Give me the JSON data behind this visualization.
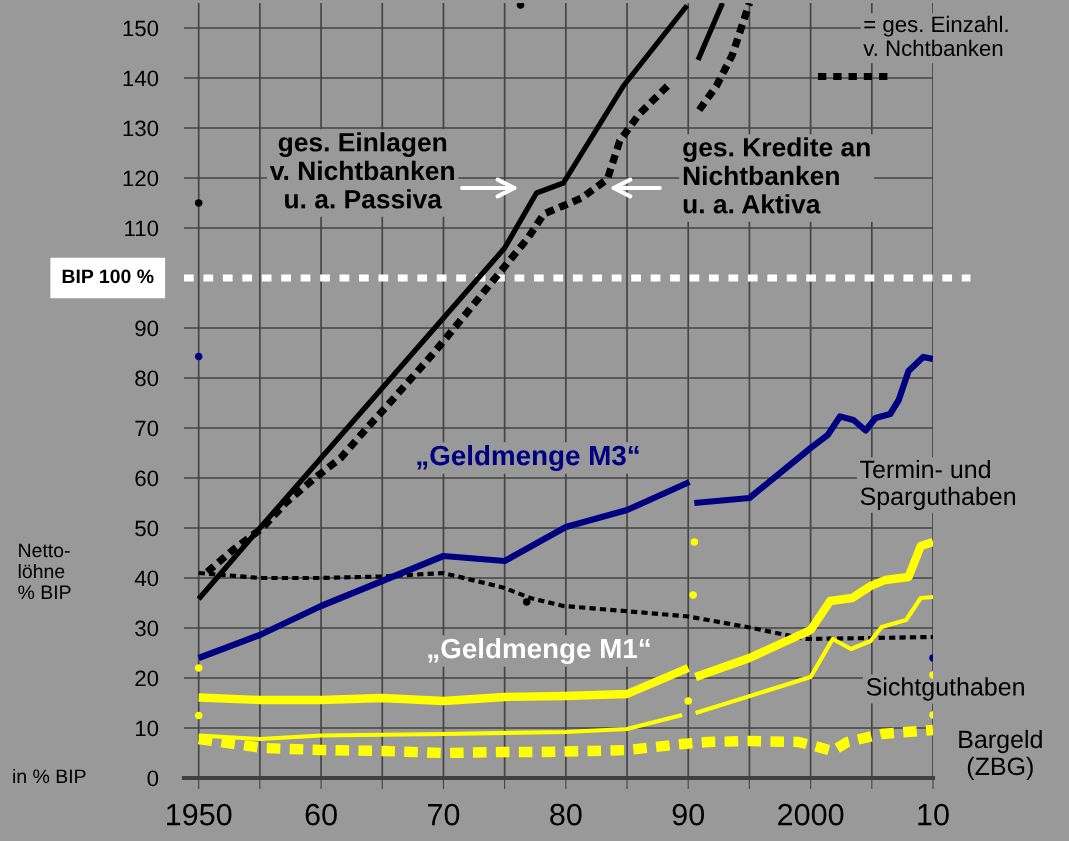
{
  "chart_data": {
    "type": "line",
    "ylabel": "in % BIP",
    "xlim": [
      1948.8,
      2010
    ],
    "ylim": [
      0,
      155
    ],
    "xticks": [
      {
        "value": 1950,
        "label": "1950"
      },
      {
        "value": 1955,
        "label": null
      },
      {
        "value": 1960,
        "label": "60"
      },
      {
        "value": 1965,
        "label": null
      },
      {
        "value": 1970,
        "label": "70"
      },
      {
        "value": 1975,
        "label": null
      },
      {
        "value": 1980,
        "label": "80"
      },
      {
        "value": 1985,
        "label": null
      },
      {
        "value": 1990,
        "label": "90"
      },
      {
        "value": 1995,
        "label": null
      },
      {
        "value": 2000,
        "label": "2000"
      },
      {
        "value": 2005,
        "label": null
      },
      {
        "value": 2010,
        "label": "10"
      }
    ],
    "yticks": [
      0,
      10,
      20,
      30,
      40,
      50,
      60,
      70,
      80,
      90,
      110,
      120,
      130,
      140,
      150
    ],
    "grid": true,
    "ref_lines": [
      {
        "axis": "y",
        "value": 100,
        "label": "BIP 100 %",
        "color": "#ffffff",
        "line_style": "dashed"
      }
    ],
    "annotations": [
      "„Geldmenge M1“",
      "= ges. Einzahl.\nv. Nchtbanken",
      "Netto-\nlöhne\n% BIP",
      "Termin- und\nSparguthaben",
      "Sichtguthaben",
      "Bargeld\n(ZBG)",
      "ges. Einlagen\nv. Nichtbanken\nu. a. Passiva",
      "ges. Kredite an\nNichtbanken\nu. a. Aktiva"
    ],
    "series": [
      {
        "color": "#000000",
        "line_style": "solid",
        "x": [
          1950,
          1955,
          1960,
          1965,
          1970,
          1975,
          1977.6,
          1979.8,
          1984.7,
          1989.9,
          1990.5,
          1990.8,
          1992.8
        ],
        "values": [
          35.8,
          50,
          64,
          78,
          92,
          106,
          117,
          119,
          138.4,
          154.5,
          null,
          143.6,
          155
        ]
      },
      {
        "color": "#000000",
        "line_style": "dashed",
        "x": [
          1950.7,
          1952.9,
          1955.2,
          1957.1,
          1959.4,
          1961.6,
          1963.6,
          1965.6,
          1969.2,
          1972.9,
          1976.9,
          1978.2,
          1981.3,
          1983.4,
          1984.4,
          1986,
          1988.3,
          1990.5,
          1990.9,
          1992.3,
          1993.6,
          1994.6,
          1995
        ],
        "values": [
          41.2,
          45.8,
          50,
          55,
          59.8,
          64,
          69.6,
          75,
          85,
          96,
          108,
          112.8,
          116,
          119.8,
          127.4,
          132.8,
          138.4,
          null,
          133.6,
          138.4,
          144.6,
          152,
          155
        ]
      },
      {
        "color": "#000000",
        "line_style": "dashed",
        "x": [
          1950,
          1955,
          1960,
          1965,
          1970,
          1975,
          1977.1,
          1979.8,
          1984.8,
          1990,
          1994.8,
          1999.6,
          2005,
          2010
        ],
        "values": [
          41,
          40,
          40,
          40.3,
          41,
          38,
          36,
          34.4,
          33.4,
          32.3,
          30.2,
          27.8,
          28,
          28.2
        ]
      },
      {
        "name": "„Geldmenge M3“",
        "color": "#000080",
        "line_style": "solid",
        "x": [
          1950,
          1955,
          1960,
          1970,
          1975,
          1980,
          1985,
          1990.1,
          1990.3,
          1990.5,
          1995,
          2000,
          2001.4,
          2002.4,
          2003.5,
          2004.5,
          2005.3,
          2006.5,
          2007.2,
          2008,
          2009.2,
          2010
        ],
        "values": [
          24,
          28.6,
          34.4,
          44.4,
          43.4,
          50.2,
          53.6,
          59.2,
          null,
          55,
          56,
          66,
          68.6,
          72.3,
          71.6,
          69.5,
          72,
          72.8,
          75.6,
          81.4,
          84.2,
          83.8
        ]
      },
      {
        "color": "#ffff00",
        "line_style": "solid",
        "x": [
          1950,
          1955,
          1960,
          1965,
          1970,
          1975,
          1980,
          1985,
          1990,
          1990.3,
          1990.6,
          1995,
          2000,
          2001.6,
          2003.4,
          2004.9,
          2006.1,
          2008,
          2009,
          2010
        ],
        "values": [
          16.1,
          15.6,
          15.6,
          16,
          15.4,
          16.2,
          16.4,
          16.8,
          22,
          null,
          20.2,
          24,
          29.6,
          35.4,
          36,
          38.4,
          39.6,
          40.2,
          46.4,
          47.2
        ]
      },
      {
        "color": "#ffff00",
        "line_style": "solid",
        "x": [
          1950,
          1955,
          1960,
          1970,
          1980,
          1985,
          1989.5,
          1990,
          1990.6,
          2000,
          2001.8,
          2003.3,
          2004.9,
          2005.8,
          2007.8,
          2009,
          2010
        ],
        "values": [
          8.5,
          7.8,
          8.5,
          8.8,
          9.2,
          9.8,
          12.6,
          null,
          13,
          20.2,
          27.8,
          25.8,
          27.4,
          30.2,
          31.6,
          36,
          36.2
        ]
      },
      {
        "color": "#ffff00",
        "line_style": "dashed",
        "x": [
          1950,
          1955.2,
          1960,
          1965,
          1970,
          1975,
          1978,
          1982,
          1985,
          1989.5,
          1991.6,
          1995,
          1999,
          2000,
          2001.8,
          2003,
          2005.8,
          2010
        ],
        "values": [
          7.8,
          6,
          5.6,
          5.4,
          5,
          5.2,
          5.2,
          5.4,
          5.6,
          6.8,
          7.2,
          7.4,
          7.2,
          6.6,
          5.4,
          7.2,
          8.8,
          9.6
        ]
      },
      {
        "type": "scatter",
        "marker": "circle",
        "color": "#000000",
        "x": [
          1950,
          1976.3,
          1976.8
        ],
        "values": [
          115,
          154.6,
          35.2
        ]
      },
      {
        "type": "scatter",
        "marker": "circle",
        "color": "#000080",
        "x": [
          1950,
          2010
        ],
        "values": [
          84.3,
          24
        ]
      },
      {
        "type": "scatter",
        "marker": "circle",
        "color": "#ffff00",
        "x": [
          1950,
          1950,
          1990.5,
          1990.4,
          1990,
          2010,
          2010
        ],
        "values": [
          22,
          12.5,
          47.2,
          36.6,
          15.4,
          20.6,
          12.6
        ]
      }
    ]
  }
}
